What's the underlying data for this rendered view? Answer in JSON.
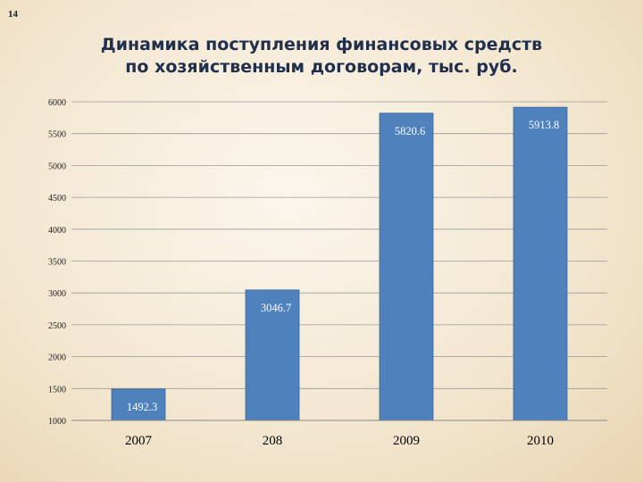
{
  "slide": {
    "number": "14",
    "title_line1": "Динамика поступления финансовых средств",
    "title_line2": "по хозяйственным договорам, тыс. руб."
  },
  "chart_data": {
    "type": "bar",
    "title": "Динамика поступления финансовых средств по хозяйственным договорам, тыс. руб.",
    "categories": [
      "2007",
      "208",
      "2009",
      "2010"
    ],
    "values": [
      1492.3,
      3046.7,
      5820.6,
      5913.8
    ],
    "data_labels": [
      "1492.3",
      "3046.7",
      "5820.6",
      "5913.8"
    ],
    "yticks": [
      "1000",
      "1500",
      "2000",
      "2500",
      "3000",
      "3500",
      "4000",
      "4500",
      "5000",
      "5500",
      "6000"
    ],
    "ylim": [
      1000,
      6000
    ],
    "xlabel": "",
    "ylabel": "",
    "grid": true,
    "legend": "none",
    "bar_color": "#4f81bd",
    "label_color": "#ffffff"
  }
}
